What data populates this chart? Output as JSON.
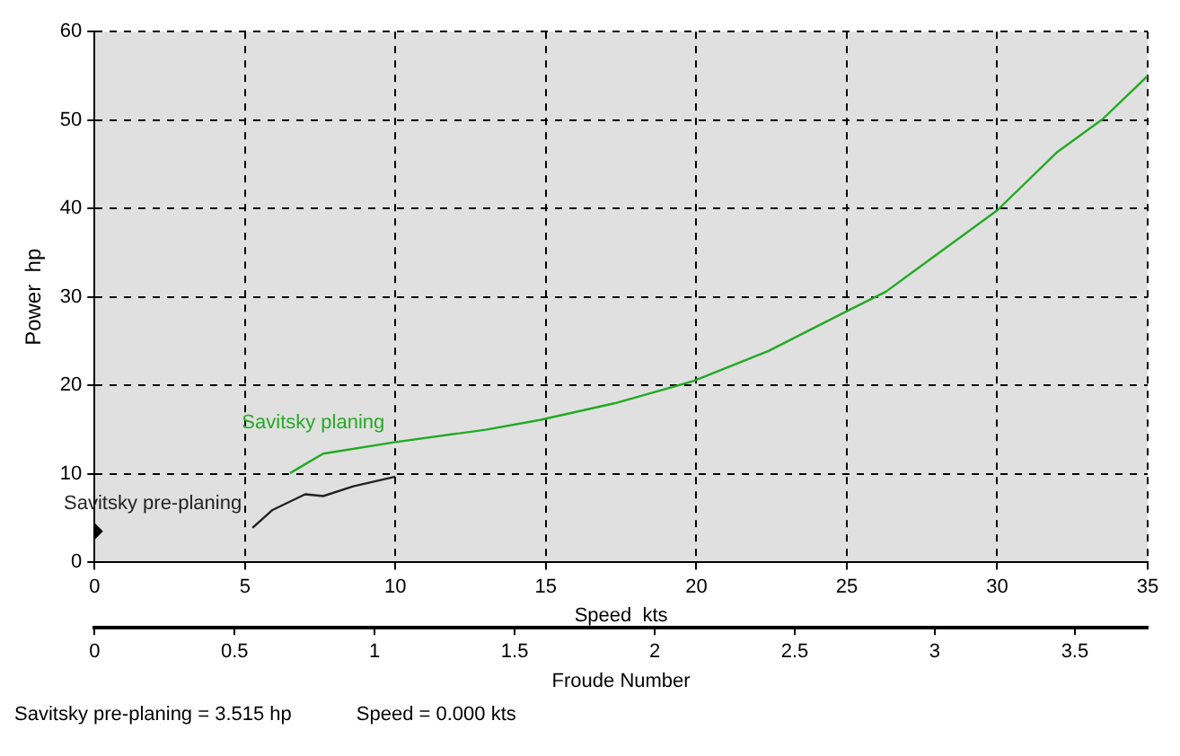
{
  "chart_data": {
    "type": "line",
    "xlabel": "Speed  kts",
    "ylabel": "Power  hp",
    "x2label": "Froude Number",
    "xlim": [
      0,
      35
    ],
    "xticks": [
      0,
      5,
      10,
      15,
      20,
      25,
      30,
      35
    ],
    "ylim": [
      0,
      60
    ],
    "yticks": [
      0,
      10,
      20,
      30,
      40,
      50,
      60
    ],
    "x2lim": [
      0,
      3.76
    ],
    "x2ticks": [
      0,
      0.5,
      1,
      1.5,
      2,
      2.5,
      3,
      3.5
    ],
    "grid": true,
    "legend": false,
    "series": [
      {
        "name": "Savitsky planing",
        "color": "#22aa22",
        "x": [
          6.5,
          7.6,
          10,
          13,
          14.8,
          17.3,
          19.9,
          22.4,
          25,
          26.3,
          30,
          32,
          33.5,
          35
        ],
        "values": [
          10.1,
          12.3,
          13.6,
          15,
          16.1,
          18,
          20.5,
          23.9,
          28.4,
          30.6,
          39.8,
          46.4,
          50.1,
          55
        ]
      },
      {
        "name": "Savitsky pre-planing",
        "color": "#222222",
        "x": [
          5.25,
          5.9,
          7,
          7.6,
          8.6,
          10
        ],
        "values": [
          3.9,
          5.9,
          7.7,
          7.5,
          8.6,
          9.7
        ]
      },
      {
        "type": "scatter",
        "marker": "diamond",
        "color": "#000000",
        "x": [
          0
        ],
        "values": [
          3.515
        ]
      }
    ],
    "annotations": [
      "Savitsky pre-planing =  3.515 hp",
      "Speed =  0.000 kts"
    ]
  }
}
